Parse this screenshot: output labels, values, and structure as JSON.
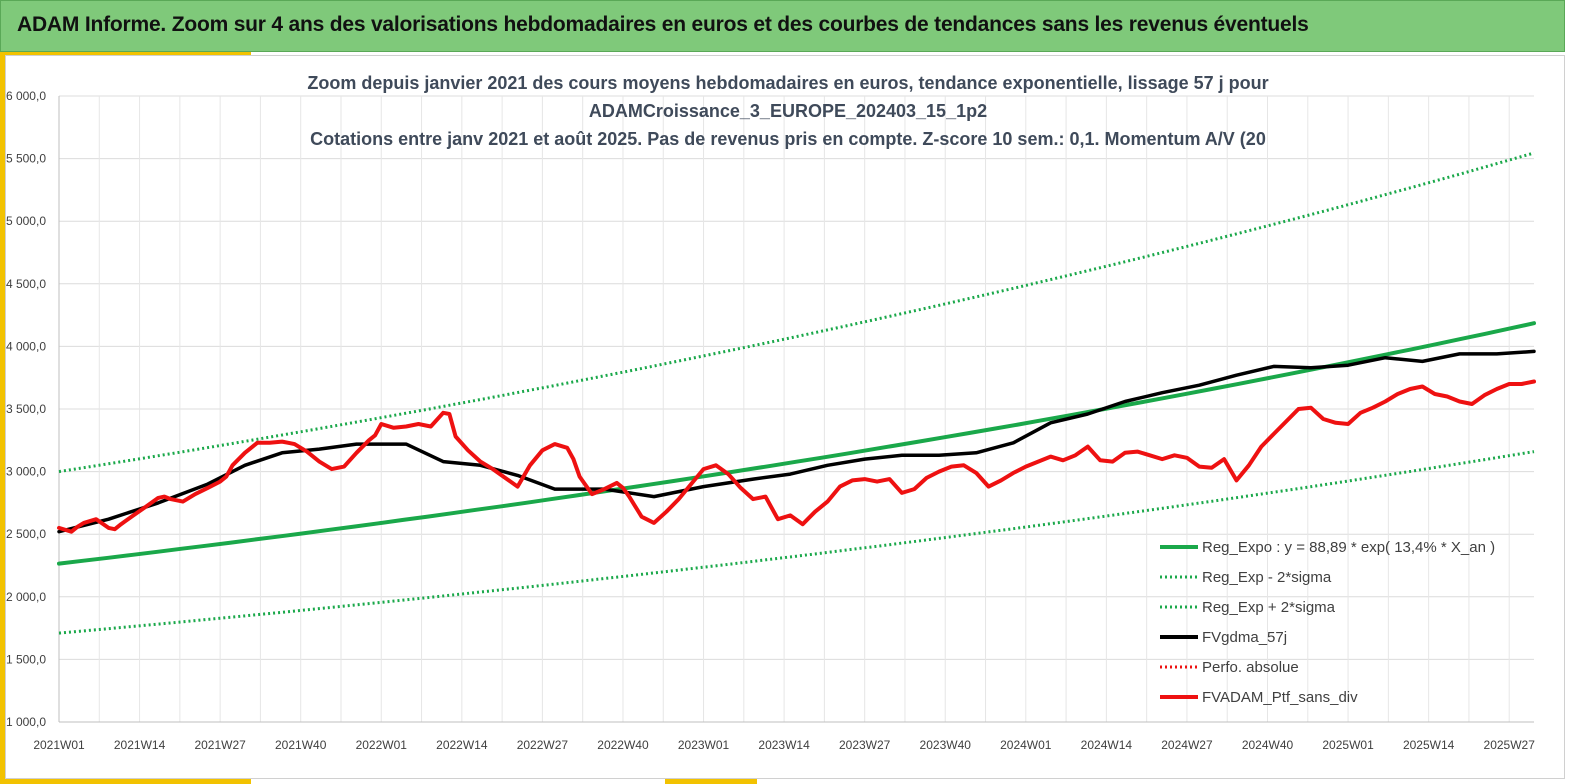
{
  "banner": {
    "title": "ADAM Informe. Zoom sur 4 ans des valorisations hebdomadaires en euros et des courbes de tendances sans les revenus éventuels"
  },
  "colors": {
    "banner": "#7fc97a",
    "accent": "#f2c200",
    "trend": "#1aa84a",
    "ma": "#000000",
    "price": "#ee1111"
  },
  "chart_data": {
    "type": "line",
    "title_lines": [
      "Zoom depuis janvier 2021 des cours moyens hebdomadaires  en euros, tendance exponentielle, lissage 57 j pour",
      "ADAMCroissance_3_EUROPE_202403_15_1p2",
      "Cotations  entre janv 2021 et août 2025. Pas de revenus pris en compte. Z-score 10 sem.: 0,1. Momentum A/V (20"
    ],
    "x_ticks": [
      "2021W01",
      "2021W14",
      "2021W27",
      "2021W40",
      "2022W01",
      "2022W14",
      "2022W27",
      "2022W40",
      "2023W01",
      "2023W14",
      "2023W27",
      "2023W40",
      "2024W01",
      "2024W14",
      "2024W27",
      "2024W40",
      "2025W01",
      "2025W14",
      "2025W27"
    ],
    "x_range_weeks": [
      0,
      238
    ],
    "ylim": [
      1000,
      6000
    ],
    "y_ticks": [
      "1 000,0",
      "1 500,0",
      "2 000,0",
      "2 500,0",
      "3 000,0",
      "3 500,0",
      "4 000,0",
      "4 500,0",
      "5 000,0",
      "5 500,0",
      "6 000,0"
    ],
    "grid": true,
    "legend_position": "bottom-right",
    "legend": [
      {
        "label": "Reg_Expo : y = 88,89 * exp( 13,4% *  X_an )",
        "color": "#1aa84a",
        "style": "solid"
      },
      {
        "label": "Reg_Exp - 2*sigma",
        "color": "#1aa84a",
        "style": "dotted"
      },
      {
        "label": "Reg_Exp + 2*sigma",
        "color": "#1aa84a",
        "style": "dotted"
      },
      {
        "label": "FVgdma_57j",
        "color": "#000000",
        "style": "solid"
      },
      {
        "label": "Perfo. absolue",
        "color": "#ee1111",
        "style": "dotted"
      },
      {
        "label": "FVADAM_Ptf_sans_div",
        "color": "#ee1111",
        "style": "solid"
      }
    ],
    "series": [
      {
        "name": "Reg_Expo : y = 88,89 * exp( 13,4% *  X_an )",
        "x": [
          0,
          238
        ],
        "y": [
          2265,
          4185
        ],
        "interp": "exp"
      },
      {
        "name": "Reg_Exp - 2*sigma",
        "x": [
          0,
          238
        ],
        "y": [
          1710,
          3160
        ],
        "interp": "exp"
      },
      {
        "name": "Reg_Exp + 2*sigma",
        "x": [
          0,
          238
        ],
        "y": [
          3000,
          5545
        ],
        "interp": "exp"
      },
      {
        "name": "FVgdma_57j",
        "x": [
          0,
          8,
          16,
          24,
          30,
          36,
          42,
          48,
          56,
          62,
          68,
          74,
          80,
          88,
          96,
          104,
          112,
          118,
          124,
          130,
          136,
          142,
          148,
          154,
          160,
          166,
          172,
          178,
          184,
          190,
          196,
          202,
          208,
          214,
          220,
          226,
          232,
          238
        ],
        "y": [
          2520,
          2620,
          2750,
          2900,
          3050,
          3150,
          3180,
          3220,
          3220,
          3080,
          3050,
          2970,
          2860,
          2860,
          2800,
          2880,
          2940,
          2980,
          3050,
          3100,
          3130,
          3130,
          3150,
          3230,
          3390,
          3460,
          3560,
          3630,
          3690,
          3770,
          3840,
          3830,
          3850,
          3910,
          3880,
          3940,
          3940,
          3960
        ]
      },
      {
        "name": "FVADAM_Ptf_sans_div",
        "x": [
          0,
          2,
          3,
          4,
          6,
          8,
          9,
          10,
          12,
          14,
          16,
          17,
          18,
          20,
          22,
          24,
          26,
          27,
          28,
          30,
          32,
          34,
          36,
          37,
          38,
          40,
          42,
          44,
          46,
          48,
          50,
          51,
          52,
          54,
          56,
          58,
          60,
          62,
          63,
          64,
          66,
          68,
          70,
          72,
          74,
          76,
          78,
          80,
          82,
          83,
          84,
          86,
          88,
          90,
          91,
          92,
          94,
          96,
          98,
          100,
          102,
          104,
          106,
          108,
          110,
          112,
          114,
          116,
          118,
          120,
          122,
          124,
          126,
          128,
          130,
          132,
          134,
          136,
          138,
          140,
          142,
          144,
          146,
          148,
          150,
          152,
          154,
          156,
          158,
          160,
          162,
          164,
          166,
          168,
          170,
          172,
          174,
          176,
          178,
          180,
          182,
          184,
          186,
          188,
          190,
          192,
          194,
          196,
          198,
          200,
          202,
          204,
          206,
          208,
          210,
          212,
          214,
          216,
          218,
          220,
          222,
          224,
          226,
          228,
          230,
          232,
          234,
          236,
          238
        ],
        "y": [
          2550,
          2520,
          2560,
          2590,
          2620,
          2550,
          2540,
          2580,
          2650,
          2720,
          2790,
          2800,
          2780,
          2760,
          2820,
          2870,
          2920,
          2960,
          3050,
          3150,
          3230,
          3230,
          3240,
          3230,
          3220,
          3160,
          3080,
          3020,
          3040,
          3150,
          3250,
          3290,
          3380,
          3350,
          3360,
          3380,
          3360,
          3470,
          3460,
          3280,
          3170,
          3080,
          3020,
          2950,
          2880,
          3050,
          3170,
          3220,
          3190,
          3100,
          2960,
          2820,
          2860,
          2910,
          2870,
          2800,
          2640,
          2590,
          2680,
          2780,
          2900,
          3020,
          3050,
          2980,
          2870,
          2780,
          2800,
          2620,
          2650,
          2580,
          2680,
          2760,
          2880,
          2930,
          2940,
          2920,
          2940,
          2830,
          2860,
          2950,
          3000,
          3040,
          3050,
          2990,
          2880,
          2930,
          2990,
          3040,
          3080,
          3120,
          3090,
          3130,
          3200,
          3090,
          3080,
          3150,
          3160,
          3130,
          3100,
          3130,
          3110,
          3040,
          3030,
          3100,
          2930,
          3050,
          3200,
          3300,
          3400,
          3500,
          3510,
          3420,
          3390,
          3380,
          3470,
          3510,
          3560,
          3620,
          3660,
          3680,
          3620,
          3600,
          3560,
          3540,
          3610,
          3660,
          3700,
          3700,
          3720
        ]
      }
    ]
  }
}
